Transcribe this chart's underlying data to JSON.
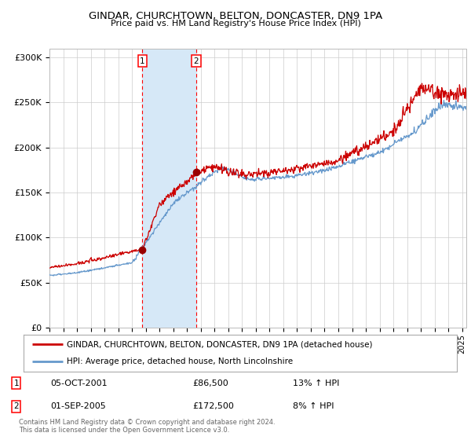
{
  "title": "GINDAR, CHURCHTOWN, BELTON, DONCASTER, DN9 1PA",
  "subtitle": "Price paid vs. HM Land Registry's House Price Index (HPI)",
  "ylabel_ticks": [
    "£0",
    "£50K",
    "£100K",
    "£150K",
    "£200K",
    "£250K",
    "£300K"
  ],
  "ytick_values": [
    0,
    50000,
    100000,
    150000,
    200000,
    250000,
    300000
  ],
  "ylim": [
    0,
    310000
  ],
  "xlim_start": 1995.0,
  "xlim_end": 2025.3,
  "legend_line1": "GINDAR, CHURCHTOWN, BELTON, DONCASTER, DN9 1PA (detached house)",
  "legend_line2": "HPI: Average price, detached house, North Lincolnshire",
  "marker1_date": 2001.75,
  "marker1_price": 86500,
  "marker2_date": 2005.67,
  "marker2_price": 172500,
  "shade_color": "#d6e8f7",
  "red_color": "#cc0000",
  "blue_color": "#6699cc",
  "dot_color": "#990000",
  "footer": "Contains HM Land Registry data © Crown copyright and database right 2024.\nThis data is licensed under the Open Government Licence v3.0."
}
